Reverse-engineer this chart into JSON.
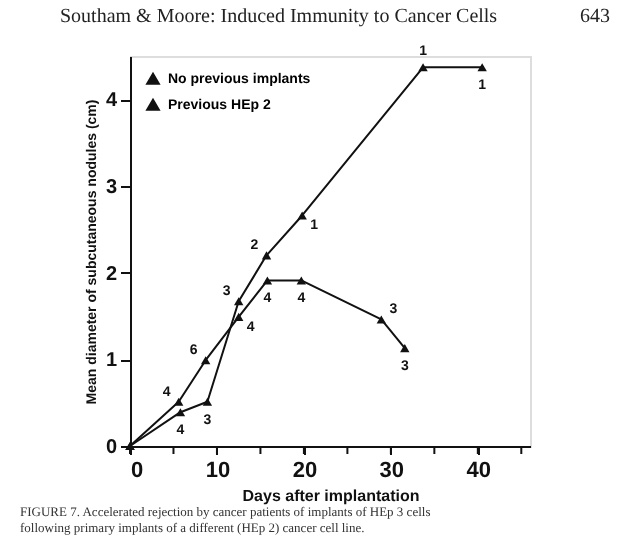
{
  "chart_data": {
    "type": "line",
    "title": "Southam & Moore: Induced Immunity to Cancer Cells",
    "xlabel": "Days after implantation",
    "ylabel": "Mean diameter of subcutaneous nodules (cm)",
    "xlim": [
      0,
      46
    ],
    "xticks": [
      0,
      {
        "value": 5,
        "label": null
      },
      10,
      {
        "value": 15,
        "label": null
      },
      20,
      {
        "value": 25,
        "label": null
      },
      30,
      {
        "value": 35,
        "label": null
      },
      40,
      {
        "value": 45,
        "label": null
      }
    ],
    "ylim": [
      0,
      4.5
    ],
    "yticks": [
      0,
      1,
      2,
      3,
      4
    ],
    "grid": false,
    "legend": "top left",
    "marker": "triangle",
    "line_style": "solid",
    "series": [
      {
        "name": "No previous implants",
        "color": "#111111",
        "x": [
          0,
          5.8,
          8.9,
          12.5,
          15.7,
          19.8,
          33.7,
          40.5
        ],
        "values": [
          0,
          0.39,
          0.51,
          1.67,
          2.2,
          2.66,
          4.37,
          4.37
        ]
      },
      {
        "name": "Previous HEp 2",
        "color": "#111111",
        "x": [
          0,
          5.6,
          8.7,
          12.5,
          15.8,
          19.7,
          28.9,
          31.6
        ],
        "values": [
          0,
          0.51,
          0.99,
          1.49,
          1.91,
          1.91,
          1.46,
          1.13
        ]
      }
    ],
    "annotations": [
      "643",
      "FIGURE 7. Accelerated rejection by cancer patients of implants of HEp 3 cells following primary implants of a different (HEp 2) cancer cell line.",
      {
        "text": "4",
        "x": 5.8,
        "y": 0.39
      },
      {
        "text": "3",
        "x": 8.9,
        "y": 0.51
      },
      {
        "text": "3",
        "x": 12.5,
        "y": 1.67
      },
      {
        "text": "2",
        "x": 15.7,
        "y": 2.2
      },
      {
        "text": "1",
        "x": 19.8,
        "y": 2.66
      },
      {
        "text": "1",
        "x": 33.7,
        "y": 4.37
      },
      {
        "text": "1",
        "x": 40.5,
        "y": 4.37
      },
      {
        "text": "4",
        "x": 5.6,
        "y": 0.51
      },
      {
        "text": "6",
        "x": 8.7,
        "y": 0.99
      },
      {
        "text": "4",
        "x": 12.5,
        "y": 1.49
      },
      {
        "text": "4",
        "x": 15.8,
        "y": 1.91
      },
      {
        "text": "4",
        "x": 19.7,
        "y": 1.91
      },
      {
        "text": "3",
        "x": 28.9,
        "y": 1.46
      },
      {
        "text": "3",
        "x": 31.6,
        "y": 1.13
      }
    ]
  }
}
